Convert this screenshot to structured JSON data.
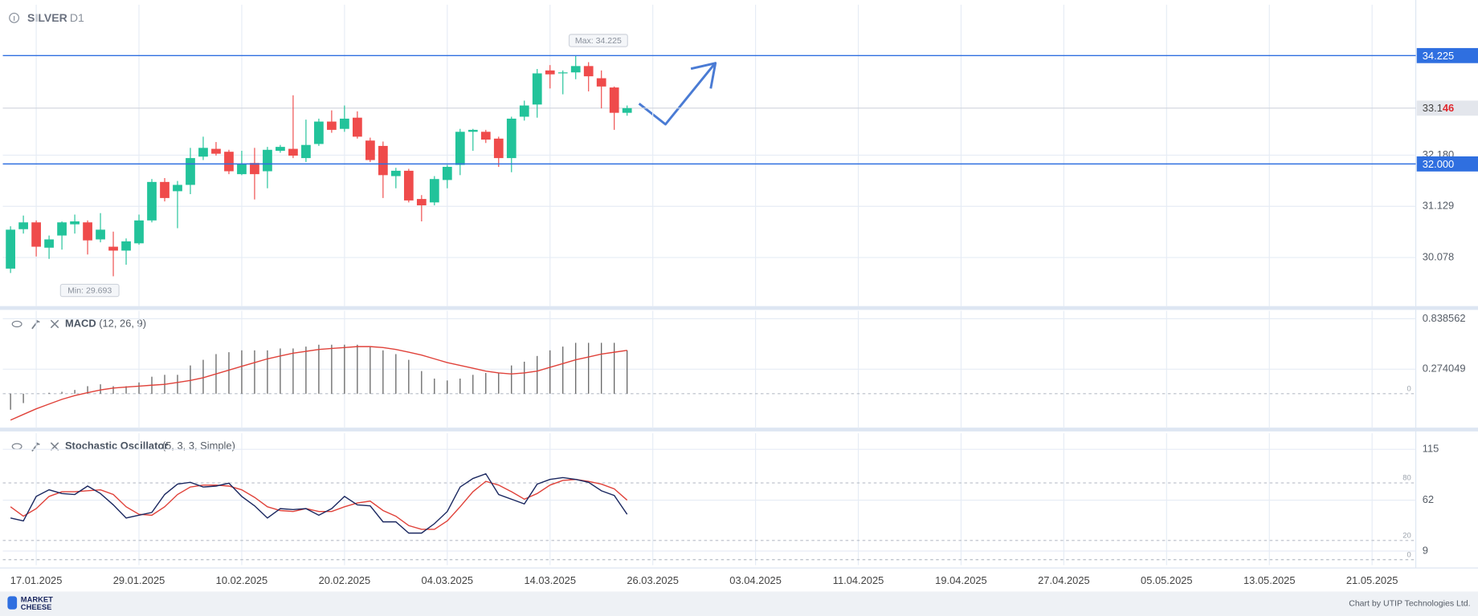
{
  "header": {
    "symbol": "SILVER",
    "timeframe": "D1"
  },
  "footer": {
    "logo_line1": "MARKET",
    "logo_line2": "CHEESE",
    "credit": "Chart by UTIP Technologies Ltd."
  },
  "chart_data": [
    {
      "type": "candlestick",
      "up_color": "#22c39a",
      "down_color": "#ef4b4b",
      "xlim": [
        -0.6,
        109.4
      ],
      "ylim": [
        29.08,
        35.27
      ],
      "yticks": [
        30.078,
        31.129,
        {
          "value": 32.18,
          "label": "32.180"
        }
      ],
      "grid": true,
      "ohlc": [
        [
          29.85,
          30.72,
          29.76,
          30.65
        ],
        [
          30.66,
          30.94,
          30.57,
          30.8
        ],
        [
          30.8,
          30.84,
          30.1,
          30.3
        ],
        [
          30.28,
          30.53,
          30.05,
          30.45
        ],
        [
          30.53,
          30.82,
          30.24,
          30.8
        ],
        [
          30.76,
          30.96,
          30.57,
          30.82
        ],
        [
          30.8,
          30.84,
          30.14,
          30.43
        ],
        [
          30.45,
          30.99,
          30.39,
          30.65
        ],
        [
          30.3,
          30.61,
          29.693,
          30.22
        ],
        [
          30.22,
          30.47,
          29.93,
          30.41
        ],
        [
          30.37,
          30.96,
          30.34,
          30.84
        ],
        [
          30.84,
          31.69,
          30.8,
          31.63
        ],
        [
          31.63,
          31.71,
          31.23,
          31.3
        ],
        [
          31.44,
          31.65,
          30.68,
          31.57
        ],
        [
          31.57,
          32.33,
          31.38,
          32.12
        ],
        [
          32.15,
          32.56,
          32.08,
          32.33
        ],
        [
          32.31,
          32.45,
          32.17,
          32.21
        ],
        [
          32.25,
          32.29,
          31.79,
          31.85
        ],
        [
          31.79,
          32.27,
          31.77,
          32.0
        ],
        [
          32.02,
          32.33,
          31.27,
          31.79
        ],
        [
          31.85,
          32.35,
          31.5,
          32.29
        ],
        [
          32.27,
          32.39,
          32.23,
          32.35
        ],
        [
          32.31,
          33.41,
          32.12,
          32.17
        ],
        [
          32.12,
          32.91,
          32.04,
          32.39
        ],
        [
          32.41,
          32.93,
          32.37,
          32.87
        ],
        [
          32.87,
          33.1,
          32.64,
          32.7
        ],
        [
          32.72,
          33.2,
          32.66,
          32.93
        ],
        [
          32.95,
          33.08,
          32.52,
          32.56
        ],
        [
          32.48,
          32.54,
          32.04,
          32.08
        ],
        [
          32.37,
          32.46,
          31.3,
          31.77
        ],
        [
          31.75,
          31.92,
          31.5,
          31.86
        ],
        [
          31.86,
          31.9,
          31.21,
          31.25
        ],
        [
          31.28,
          31.36,
          30.82,
          31.15
        ],
        [
          31.21,
          31.75,
          31.15,
          31.69
        ],
        [
          31.67,
          31.98,
          31.5,
          31.94
        ],
        [
          31.98,
          32.72,
          31.77,
          32.66
        ],
        [
          32.66,
          32.72,
          32.27,
          32.7
        ],
        [
          32.66,
          32.7,
          32.43,
          32.5
        ],
        [
          32.52,
          32.56,
          31.94,
          32.12
        ],
        [
          32.12,
          32.97,
          31.83,
          32.93
        ],
        [
          32.97,
          33.3,
          32.89,
          33.2
        ],
        [
          33.22,
          33.95,
          32.95,
          33.86
        ],
        [
          33.92,
          34.03,
          33.55,
          33.84
        ],
        [
          33.86,
          33.92,
          33.43,
          33.88
        ],
        [
          33.88,
          34.225,
          33.74,
          34.01
        ],
        [
          34.01,
          34.09,
          33.49,
          33.8
        ],
        [
          33.76,
          33.92,
          33.14,
          33.59
        ],
        [
          33.57,
          33.59,
          32.7,
          33.05
        ],
        [
          33.05,
          33.2,
          32.99,
          33.146
        ]
      ],
      "levels": [
        {
          "value": 34.225,
          "label": "34.225",
          "color": "#2f6fe0"
        },
        {
          "value": 32,
          "label": "32.000",
          "color": "#2f6fe0"
        }
      ],
      "current_price": {
        "value": 33.146,
        "label": "33.146"
      },
      "annotations": [
        {
          "text": "Max: 34.225",
          "value": 34.225,
          "index": 44
        },
        {
          "text": "Min: 29.693",
          "value": 29.693,
          "index": 8
        }
      ]
    },
    {
      "type": "macd",
      "name": "MACD",
      "params": "(12, 26, 9)",
      "xlim": [
        -0.6,
        109.4
      ],
      "ylim": [
        -0.39,
        0.927
      ],
      "yticks": [
        0.838562,
        0.274049
      ],
      "levels": [
        0
      ],
      "histogram_color": "#555555",
      "signal_color": "#e0423a",
      "histogram": [
        -0.179,
        -0.105,
        0.0,
        0.01,
        0.021,
        0.042,
        0.084,
        0.105,
        0.084,
        0.084,
        0.126,
        0.19,
        0.211,
        0.211,
        0.316,
        0.379,
        0.443,
        0.464,
        0.485,
        0.485,
        0.485,
        0.506,
        0.506,
        0.527,
        0.548,
        0.548,
        0.548,
        0.548,
        0.527,
        0.485,
        0.443,
        0.379,
        0.253,
        0.169,
        0.148,
        0.169,
        0.211,
        0.232,
        0.232,
        0.316,
        0.358,
        0.422,
        0.485,
        0.527,
        0.569,
        0.569,
        0.569,
        0.569,
        0.485
      ],
      "signal": [
        -0.295,
        -0.232,
        -0.169,
        -0.116,
        -0.063,
        -0.021,
        0.011,
        0.042,
        0.063,
        0.074,
        0.084,
        0.095,
        0.105,
        0.126,
        0.148,
        0.179,
        0.221,
        0.264,
        0.306,
        0.348,
        0.39,
        0.422,
        0.453,
        0.474,
        0.495,
        0.506,
        0.516,
        0.527,
        0.527,
        0.516,
        0.495,
        0.464,
        0.432,
        0.39,
        0.348,
        0.316,
        0.285,
        0.253,
        0.232,
        0.221,
        0.232,
        0.253,
        0.295,
        0.337,
        0.379,
        0.411,
        0.443,
        0.464,
        0.485
      ]
    },
    {
      "type": "stochastic",
      "name": "Stochastic Oscillator",
      "params": "(5, 3, 3, Simple)",
      "xlim": [
        -0.6,
        109.4
      ],
      "ylim": [
        -5.7,
        131.7
      ],
      "yticks": [
        9,
        62,
        115
      ],
      "levels": [
        80,
        20,
        0
      ],
      "series": [
        {
          "color": "#1b2860",
          "values": [
            43.4,
            40.4,
            65.9,
            72.8,
            68.9,
            67.9,
            76.7,
            68.9,
            57.1,
            43.4,
            46.3,
            49.2,
            67.9,
            78.7,
            80.6,
            75.7,
            76.7,
            79.7,
            65.9,
            56.1,
            43.4,
            53.2,
            52.2,
            53.2,
            46.3,
            53.2,
            65.9,
            57.1,
            56.1,
            39.4,
            39.4,
            27.7,
            27.7,
            37.5,
            50.2,
            75.7,
            84.6,
            89.5,
            67.9,
            63.0,
            58.1,
            78.7,
            83.6,
            85.5,
            83.6,
            80.6,
            71.8,
            66.9,
            47.3
          ]
        },
        {
          "color": "#e0423a",
          "values": [
            55.1,
            45.3,
            53.2,
            65.9,
            70.8,
            70.8,
            71.8,
            72.8,
            67.9,
            55.1,
            47.3,
            46.3,
            55.1,
            67.9,
            75.7,
            77.7,
            77.7,
            76.7,
            72.8,
            64.9,
            55.1,
            51.2,
            50.2,
            53.2,
            50.2,
            50.2,
            55.1,
            59.1,
            61.0,
            51.2,
            45.3,
            35.5,
            31.6,
            31.6,
            40.4,
            55.1,
            70.8,
            81.6,
            77.7,
            70.8,
            63.0,
            68.9,
            77.7,
            82.6,
            83.6,
            81.6,
            78.7,
            73.8,
            62.0
          ]
        }
      ],
      "xticks": [
        {
          "value": 2,
          "label": "17.01.2025"
        },
        {
          "value": 10,
          "label": "29.01.2025"
        },
        {
          "value": 18,
          "label": "10.02.2025"
        },
        {
          "value": 26,
          "label": "20.02.2025"
        },
        {
          "value": 34,
          "label": "04.03.2025"
        },
        {
          "value": 42,
          "label": "14.03.2025"
        },
        {
          "value": 50,
          "label": "26.03.2025"
        },
        {
          "value": 58,
          "label": "03.04.2025"
        },
        {
          "value": 66,
          "label": "11.04.2025"
        },
        {
          "value": 74,
          "label": "19.04.2025"
        },
        {
          "value": 82,
          "label": "27.04.2025"
        },
        {
          "value": 90,
          "label": "05.05.2025"
        },
        {
          "value": 98,
          "label": "13.05.2025"
        },
        {
          "value": 106,
          "label": "21.05.2025"
        }
      ]
    }
  ]
}
